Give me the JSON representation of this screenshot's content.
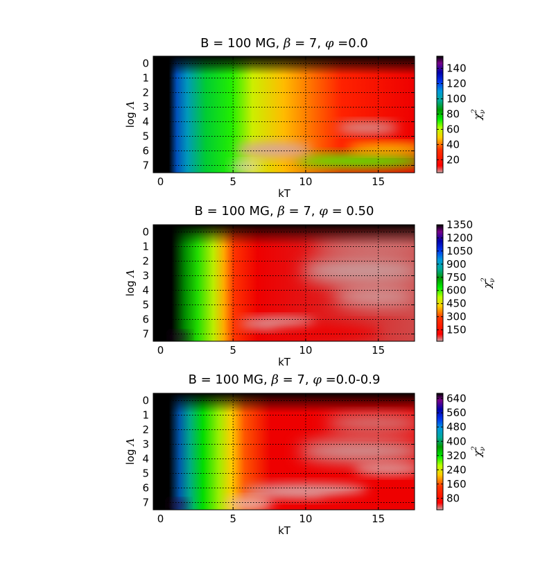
{
  "chart_data": [
    {
      "type": "heatmap",
      "title": "B = 100 MG, β = 7, φ =0.0",
      "title_parts": {
        "prefix": "B = 100 MG, ",
        "beta_sym": "β",
        "beta_val": " = 7, ",
        "phi_sym": "φ",
        "phi_val": " =0.0"
      },
      "xlabel": "kT",
      "ylabel_plain": "log ",
      "ylabel_symbol": "Λ",
      "colorbar_label": "χ",
      "colorbar_label_sup": "2",
      "colorbar_label_sub": "ν",
      "x_ticks": [
        "0",
        "5",
        "10",
        "15"
      ],
      "y_ticks": [
        "0",
        "1",
        "2",
        "3",
        "4",
        "5",
        "6",
        "7"
      ],
      "colorbar_ticks": [
        "140",
        "120",
        "100",
        "80",
        "60",
        "40",
        "20"
      ],
      "colorbar_values": [
        140,
        120,
        100,
        80,
        60,
        40,
        20
      ],
      "colorbar_range": [
        3,
        156
      ],
      "xlim": [
        -0.5,
        17.5
      ],
      "ylim": [
        7.5,
        -0.5
      ],
      "grid": true,
      "colormap": "nipy_spectral_r"
    },
    {
      "type": "heatmap",
      "title": "B = 100 MG, β = 7, φ = 0.50",
      "title_parts": {
        "prefix": "B = 100 MG, ",
        "beta_sym": "β",
        "beta_val": " = 7, ",
        "phi_sym": "φ",
        "phi_val": " = 0.50"
      },
      "xlabel": "kT",
      "ylabel_plain": "log ",
      "ylabel_symbol": "Λ",
      "colorbar_label": "χ",
      "colorbar_label_sup": "2",
      "colorbar_label_sub": "ν",
      "x_ticks": [
        "0",
        "5",
        "10",
        "15"
      ],
      "y_ticks": [
        "0",
        "1",
        "2",
        "3",
        "4",
        "5",
        "6",
        "7"
      ],
      "colorbar_ticks": [
        "1350",
        "1200",
        "1050",
        "900",
        "750",
        "600",
        "450",
        "300",
        "150"
      ],
      "colorbar_values": [
        1350,
        1200,
        1050,
        900,
        750,
        600,
        450,
        300,
        150
      ],
      "colorbar_range": [
        20,
        1350
      ],
      "xlim": [
        -0.5,
        17.5
      ],
      "ylim": [
        7.5,
        -0.5
      ],
      "grid": true,
      "colormap": "nipy_spectral_r"
    },
    {
      "type": "heatmap",
      "title": "B = 100 MG, β = 7, φ =0.0-0.9",
      "title_parts": {
        "prefix": "B = 100 MG, ",
        "beta_sym": "β",
        "beta_val": " = 7, ",
        "phi_sym": "φ",
        "phi_val": " =0.0-0.9"
      },
      "xlabel": "kT",
      "ylabel_plain": "log ",
      "ylabel_symbol": "Λ",
      "colorbar_label": "χ",
      "colorbar_label_sup": "2",
      "colorbar_label_sub": "ν",
      "x_ticks": [
        "0",
        "5",
        "10",
        "15"
      ],
      "y_ticks": [
        "0",
        "1",
        "2",
        "3",
        "4",
        "5",
        "6",
        "7"
      ],
      "colorbar_ticks": [
        "640",
        "560",
        "480",
        "400",
        "320",
        "240",
        "160",
        "80"
      ],
      "colorbar_values": [
        640,
        560,
        480,
        400,
        320,
        240,
        160,
        80
      ],
      "colorbar_range": [
        15,
        670
      ],
      "xlim": [
        -0.5,
        17.5
      ],
      "ylim": [
        7.5,
        -0.5
      ],
      "grid": true,
      "colormap": "nipy_spectral_r"
    }
  ]
}
